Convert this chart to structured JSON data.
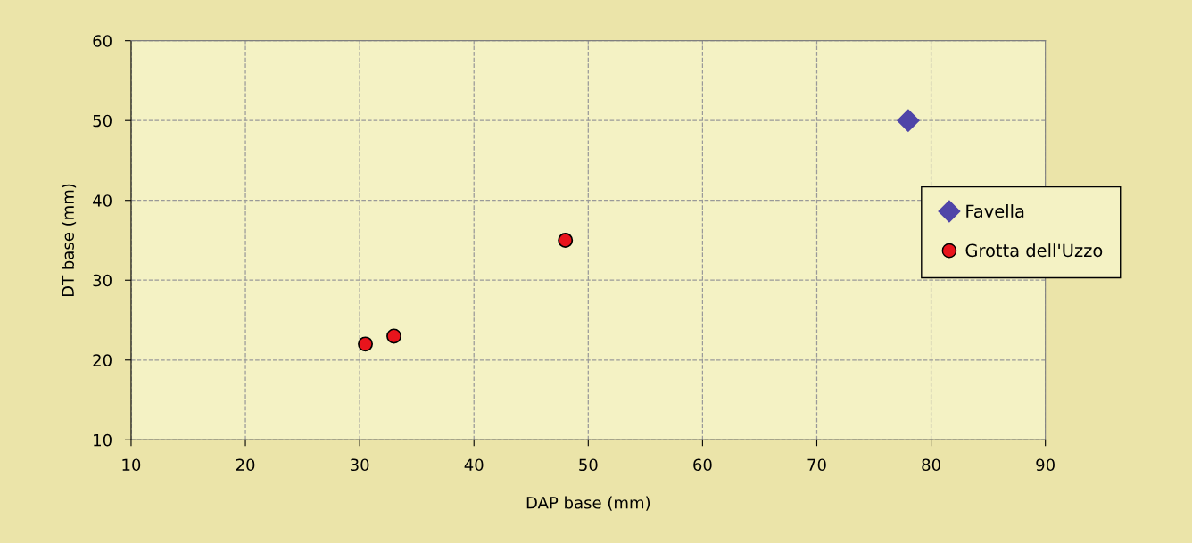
{
  "chart_data": {
    "type": "scatter",
    "xlabel": "DAP base (mm)",
    "ylabel": "DT base (mm)",
    "series": [
      {
        "name": "Favella",
        "color": "#4f45a8",
        "marker": "diamond",
        "x": [
          78
        ],
        "values": [
          50
        ]
      },
      {
        "name": "Grotta dell'Uzzo",
        "color": "#e8141c",
        "marker": "circle",
        "x": [
          30.5,
          33,
          48
        ],
        "values": [
          22,
          23,
          35
        ]
      }
    ],
    "xlim": [
      10,
      90
    ],
    "xticks": [
      10,
      20,
      30,
      40,
      50,
      60,
      70,
      80,
      90
    ],
    "ylim": [
      10,
      60
    ],
    "yticks": [
      10,
      20,
      30,
      40,
      50,
      60
    ],
    "grid": true,
    "legend": "right"
  }
}
